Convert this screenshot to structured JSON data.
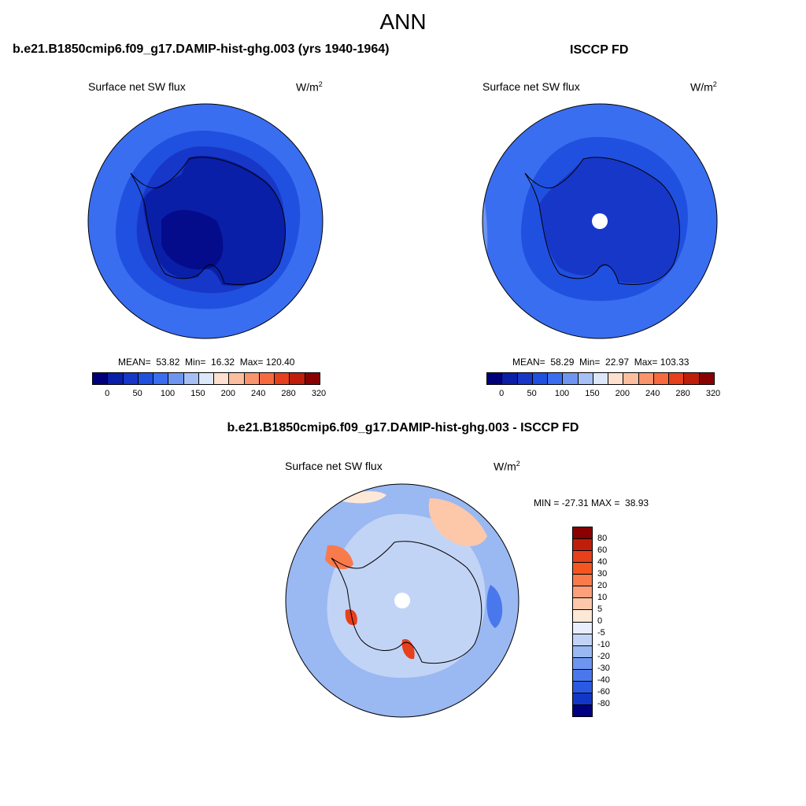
{
  "main_title": "ANN",
  "panels": {
    "model": {
      "title": "b.e21.B1850cmip6.f09_g17.DAMIP-hist-ghg.003 (yrs 1940-1964)",
      "variable": "Surface net SW flux",
      "units": "W/m",
      "units_exp": "2",
      "stats": "MEAN=  53.82  Min=  16.32  Max= 120.40",
      "colorbar_ticks": [
        "0",
        "50",
        "100",
        "150",
        "200",
        "240",
        "280",
        "320"
      ]
    },
    "obs": {
      "title": "ISCCP FD",
      "variable": "Surface net SW flux",
      "units": "W/m",
      "units_exp": "2",
      "stats": "MEAN=  58.29  Min=  22.97  Max= 103.33",
      "colorbar_ticks": [
        "0",
        "50",
        "100",
        "150",
        "200",
        "240",
        "280",
        "320"
      ]
    },
    "diff": {
      "title": "b.e21.B1850cmip6.f09_g17.DAMIP-hist-ghg.003 - ISCCP FD",
      "variable": "Surface net SW flux",
      "units": "W/m",
      "units_exp": "2",
      "stats": "MIN = -27.31 MAX =  38.93",
      "colorbar_ticks": [
        "80",
        "60",
        "40",
        "30",
        "20",
        "10",
        "5",
        "0",
        "-5",
        "-10",
        "-20",
        "-30",
        "-40",
        "-60",
        "-80"
      ]
    }
  },
  "colors": {
    "abs_scale": [
      "#00007a",
      "#0a1fa8",
      "#1737c8",
      "#2050e0",
      "#3a6ef0",
      "#6e96f0",
      "#a6c0f5",
      "#dce8fa",
      "#fde0cf",
      "#fbbf9f",
      "#f9946c",
      "#f56b3e",
      "#e7401c",
      "#bf1f0a",
      "#880000"
    ],
    "diff_scale": [
      "#880000",
      "#bf1f0a",
      "#e7401c",
      "#f5561f",
      "#f97a4b",
      "#fba07a",
      "#fcc8a9",
      "#fde8d8",
      "#e8eefb",
      "#c2d4f6",
      "#9ab8f2",
      "#6e96f0",
      "#4a78ec",
      "#2a5ae4",
      "#1237c8",
      "#000080"
    ]
  }
}
